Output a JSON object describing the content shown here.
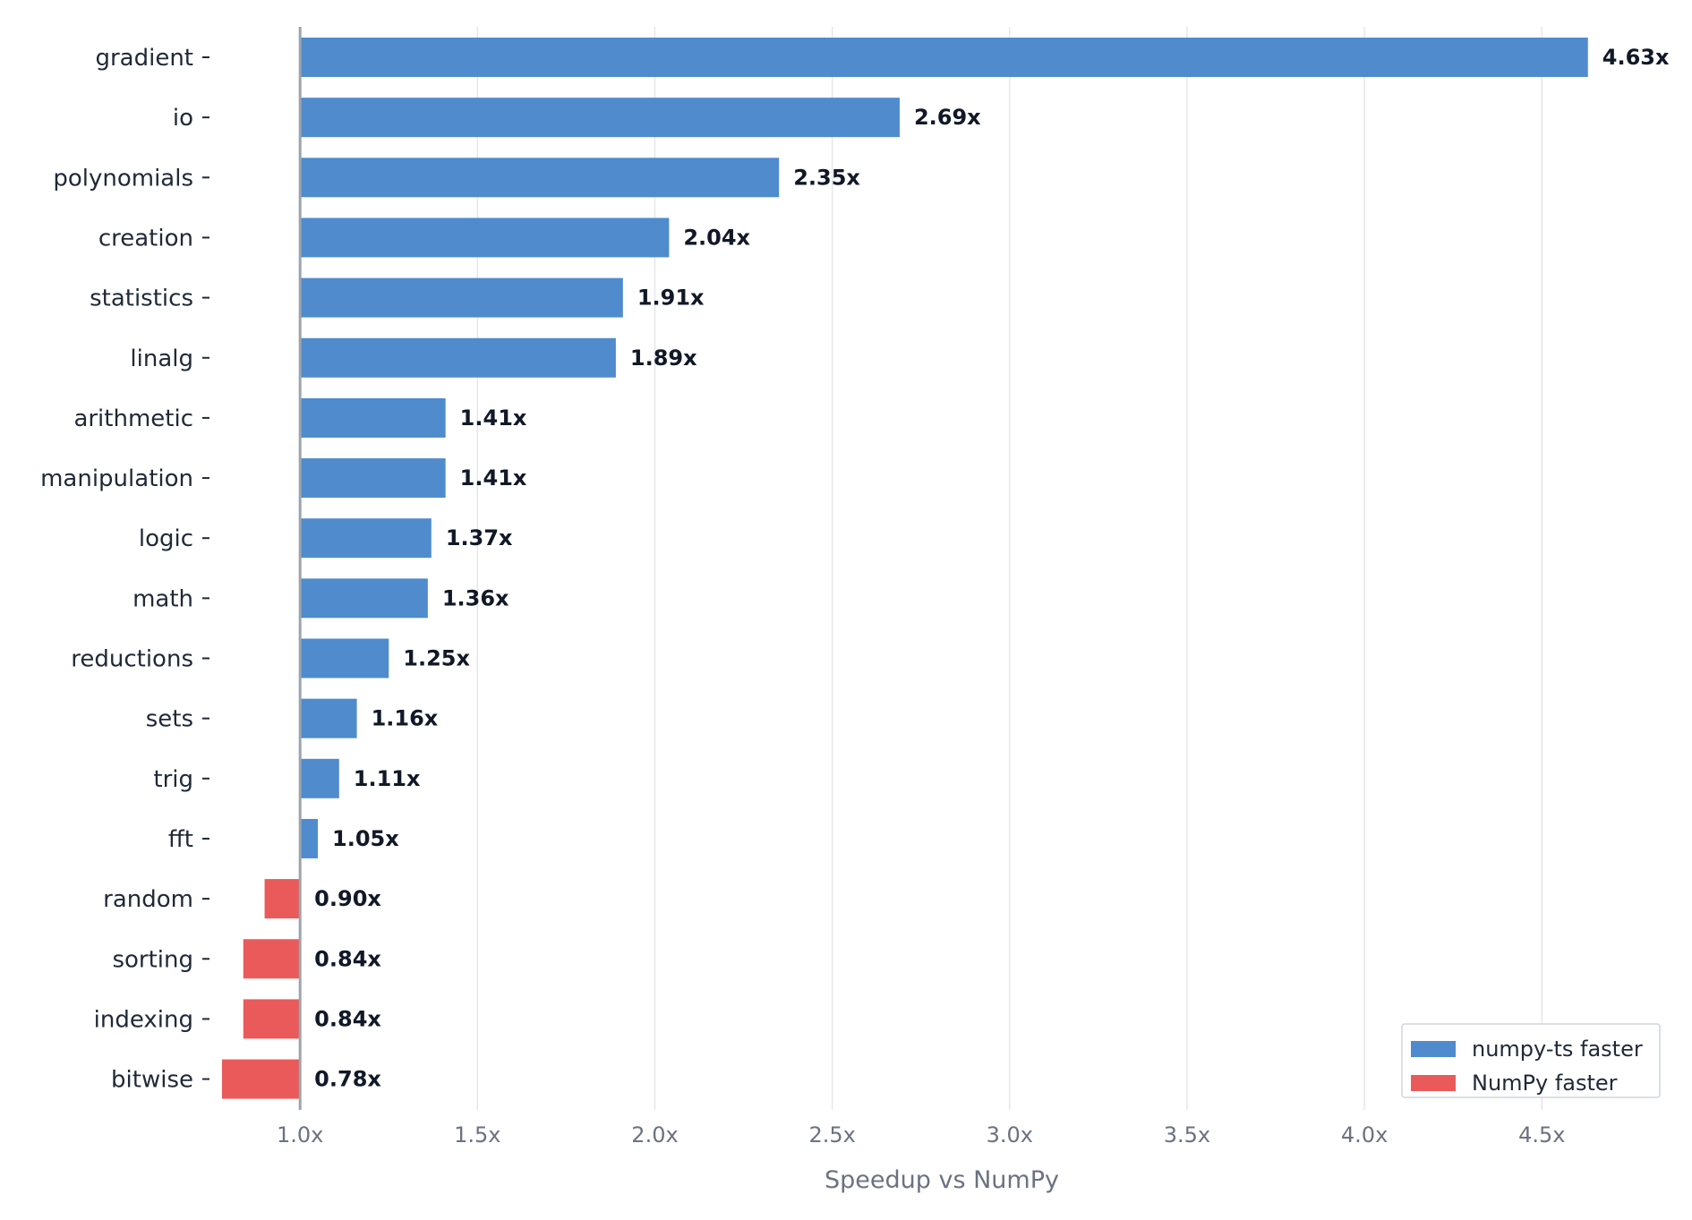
{
  "chart_data": {
    "type": "bar",
    "orientation": "horizontal",
    "categories": [
      "gradient",
      "io",
      "polynomials",
      "creation",
      "statistics",
      "linalg",
      "arithmetic",
      "manipulation",
      "logic",
      "math",
      "reductions",
      "sets",
      "trig",
      "fft",
      "random",
      "sorting",
      "indexing",
      "bitwise"
    ],
    "values": [
      4.63,
      2.69,
      2.35,
      2.04,
      1.91,
      1.89,
      1.41,
      1.41,
      1.37,
      1.36,
      1.25,
      1.16,
      1.11,
      1.05,
      0.9,
      0.84,
      0.84,
      0.78
    ],
    "value_labels": [
      "4.63x",
      "2.69x",
      "2.35x",
      "2.04x",
      "1.91x",
      "1.89x",
      "1.41x",
      "1.41x",
      "1.37x",
      "1.36x",
      "1.25x",
      "1.16x",
      "1.11x",
      "1.05x",
      "0.90x",
      "0.84x",
      "0.84x",
      "0.78x"
    ],
    "series": [
      {
        "name": "numpy-ts faster",
        "color": "#4f8bcd"
      },
      {
        "name": "NumPy faster",
        "color": "#eb5a5a"
      }
    ],
    "baseline": 1.0,
    "xlim": [
      0.78,
      4.84
    ],
    "xticks": [
      1.0,
      1.5,
      2.0,
      2.5,
      3.0,
      3.5,
      4.0,
      4.5
    ],
    "xtick_labels": [
      "1.0x",
      "1.5x",
      "2.0x",
      "2.5x",
      "3.0x",
      "3.5x",
      "4.0x",
      "4.5x"
    ],
    "xlabel": "Speedup vs NumPy",
    "ylabel": "",
    "title": "",
    "grid": "vertical",
    "legend_position": "bottom-right",
    "colors": {
      "faster": "#4f8bcd",
      "slower": "#eb5a5a",
      "baseline": "#9ca3af",
      "grid": "#e5e7eb"
    }
  }
}
